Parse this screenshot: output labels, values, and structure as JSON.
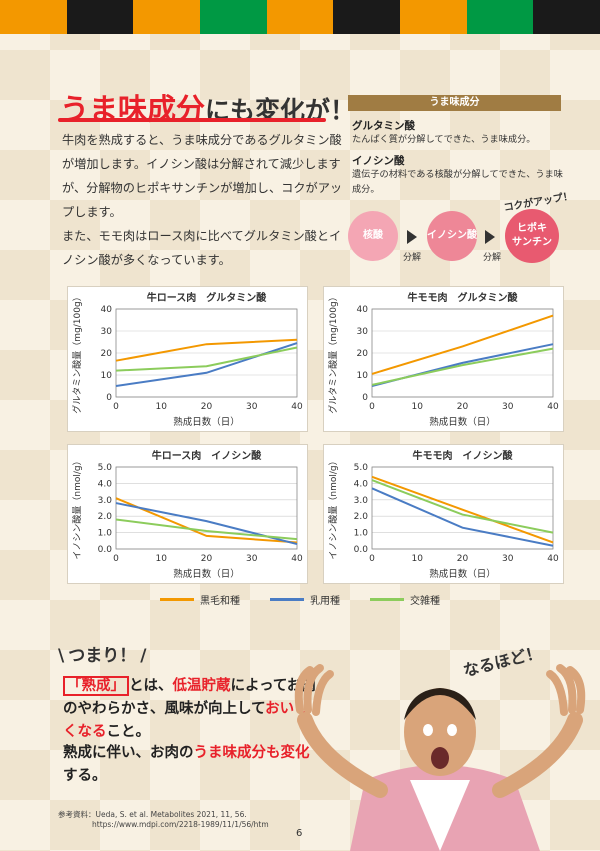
{
  "headline": {
    "part1": "うま味成分",
    "part2": "にも変化が！"
  },
  "body": {
    "p1": "牛肉を熟成すると、うま味成分であるグルタミン酸が増加します。イノシン酸は分解されて減少しますが、分解物のヒポキサンチンが増加し、コクがアップします。",
    "p2": "また、モモ肉はロース肉に比べてグルタミン酸とイノシン酸が多くなっています。"
  },
  "side": {
    "heading": "うま味成分",
    "term1": "グルタミン酸",
    "desc1": "たんぱく質が分解してできた、うま味成分。",
    "term2": "イノシン酸",
    "desc2": "遺伝子の材料である核酸が分解してできた、うま味成分。",
    "kokuup": "コクがアップ！",
    "flow": [
      "核酸",
      "イノシン酸",
      "ヒポキ\nサンチン"
    ],
    "decompose": "分解"
  },
  "legend": [
    "黒毛和種",
    "乳用種",
    "交雑種"
  ],
  "colors": {
    "wagyu": "#f39800",
    "dairy": "#4a7cc4",
    "cross": "#8ccc5c",
    "accent": "#e8212a"
  },
  "chart_data": [
    {
      "type": "line",
      "title": "牛ロース肉　グルタミン酸",
      "xlabel": "熟成日数（日）",
      "ylabel": "グルタミン酸量（mg/100g）",
      "x": [
        0,
        20,
        40
      ],
      "xticks": [
        0,
        10,
        20,
        30,
        40
      ],
      "yticks": [
        0,
        10,
        20,
        30,
        40
      ],
      "ylim": [
        0,
        40
      ],
      "series": [
        {
          "name": "黒毛和種",
          "values": [
            16.5,
            24,
            26
          ]
        },
        {
          "name": "乳用種",
          "values": [
            5,
            11,
            24.5
          ]
        },
        {
          "name": "交雑種",
          "values": [
            12,
            14,
            22.5
          ]
        }
      ]
    },
    {
      "type": "line",
      "title": "牛モモ肉　グルタミン酸",
      "xlabel": "熟成日数（日）",
      "ylabel": "グルタミン酸量（mg/100g）",
      "x": [
        0,
        20,
        40
      ],
      "xticks": [
        0,
        10,
        20,
        30,
        40
      ],
      "yticks": [
        0,
        10,
        20,
        30,
        40
      ],
      "ylim": [
        0,
        40
      ],
      "series": [
        {
          "name": "黒毛和種",
          "values": [
            10.5,
            23,
            37
          ]
        },
        {
          "name": "乳用種",
          "values": [
            5,
            15.5,
            24
          ]
        },
        {
          "name": "交雑種",
          "values": [
            5.5,
            14.5,
            22
          ]
        }
      ]
    },
    {
      "type": "line",
      "title": "牛ロース肉　イノシン酸",
      "xlabel": "熟成日数（日）",
      "ylabel": "イノシン酸量（nmol/g）",
      "x": [
        0,
        20,
        40
      ],
      "xticks": [
        0,
        10,
        20,
        30,
        40
      ],
      "yticks": [
        0.0,
        1.0,
        2.0,
        3.0,
        4.0,
        5.0
      ],
      "ylim": [
        0,
        5
      ],
      "series": [
        {
          "name": "黒毛和種",
          "values": [
            3.1,
            0.8,
            0.4
          ]
        },
        {
          "name": "乳用種",
          "values": [
            2.8,
            1.7,
            0.3
          ]
        },
        {
          "name": "交雑種",
          "values": [
            1.8,
            1.1,
            0.6
          ]
        }
      ]
    },
    {
      "type": "line",
      "title": "牛モモ肉　イノシン酸",
      "xlabel": "熟成日数（日）",
      "ylabel": "イノシン酸量（nmol/g）",
      "x": [
        0,
        20,
        40
      ],
      "xticks": [
        0,
        10,
        20,
        30,
        40
      ],
      "yticks": [
        0.0,
        1.0,
        2.0,
        3.0,
        4.0,
        5.0
      ],
      "ylim": [
        0,
        5
      ],
      "series": [
        {
          "name": "黒毛和種",
          "values": [
            4.4,
            2.4,
            0.4
          ]
        },
        {
          "name": "乳用種",
          "values": [
            3.7,
            1.3,
            0.2
          ]
        },
        {
          "name": "交雑種",
          "values": [
            4.2,
            2.1,
            1.0
          ]
        }
      ]
    }
  ],
  "conclusion": {
    "heading": "つまり！",
    "term": "「熟成」",
    "t1": "とは、",
    "t2": "低温貯蔵",
    "t3": "によってお肉のやわらかさ、風味が向上して",
    "t4": "おいしくなる",
    "t5": "こと。"
  },
  "conclusion2": {
    "t1": "熟成に伴い、お肉の",
    "t2": "うま味成分も変化",
    "t3": "する。"
  },
  "exclaim": "なるほど！",
  "reference": {
    "line1": "参考資料：Ueda, S. et al. Metabolites 2021, 11, 56.",
    "line2": "https://www.mdpi.com/2218-1989/11/1/56/htm"
  },
  "page_number": "6"
}
